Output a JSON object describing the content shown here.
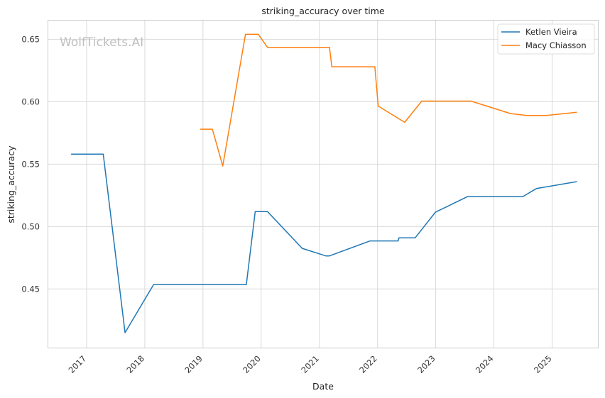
{
  "chart_data": {
    "type": "line",
    "title": "striking_accuracy over time",
    "xlabel": "Date",
    "ylabel": "striking_accuracy",
    "x_ticks": [
      "2017",
      "2018",
      "2019",
      "2020",
      "2021",
      "2022",
      "2023",
      "2024",
      "2025"
    ],
    "y_ticks": [
      "0.45",
      "0.50",
      "0.55",
      "0.60",
      "0.65"
    ],
    "xlim": [
      "2016-05-05",
      "2025-10-15"
    ],
    "ylim": [
      0.403,
      0.665
    ],
    "grid": true,
    "legend_position": "top-right",
    "watermark": "WolfTickets.AI",
    "series": [
      {
        "name": "Ketlen Vieira",
        "color": "#1f77b4",
        "points": [
          [
            "2016-09-25",
            0.558
          ],
          [
            "2017-04-15",
            0.558
          ],
          [
            "2017-08-30",
            0.415
          ],
          [
            "2018-02-25",
            0.4535
          ],
          [
            "2019-09-30",
            0.4535
          ],
          [
            "2019-11-25",
            0.512
          ],
          [
            "2020-02-10",
            0.512
          ],
          [
            "2020-09-15",
            0.4825
          ],
          [
            "2021-02-10",
            0.4765
          ],
          [
            "2021-03-05",
            0.4765
          ],
          [
            "2021-11-15",
            0.4885
          ],
          [
            "2022-05-10",
            0.4885
          ],
          [
            "2022-05-15",
            0.491
          ],
          [
            "2022-08-25",
            0.491
          ],
          [
            "2022-12-30",
            0.5115
          ],
          [
            "2023-07-20",
            0.524
          ],
          [
            "2024-07-01",
            0.524
          ],
          [
            "2024-09-25",
            0.5305
          ],
          [
            "2025-06-05",
            0.536
          ]
        ]
      },
      {
        "name": "Macy Chiasson",
        "color": "#ff7f0e",
        "points": [
          [
            "2018-12-15",
            0.578
          ],
          [
            "2019-03-01",
            0.578
          ],
          [
            "2019-05-05",
            0.5485
          ],
          [
            "2019-09-25",
            0.654
          ],
          [
            "2019-12-15",
            0.654
          ],
          [
            "2020-02-10",
            0.6435
          ],
          [
            "2021-03-05",
            0.6435
          ],
          [
            "2021-03-20",
            0.628
          ],
          [
            "2021-12-15",
            0.628
          ],
          [
            "2022-01-05",
            0.5965
          ],
          [
            "2022-06-20",
            0.5835
          ],
          [
            "2022-10-05",
            0.6005
          ],
          [
            "2023-08-10",
            0.6005
          ],
          [
            "2024-04-15",
            0.5905
          ],
          [
            "2024-07-25",
            0.589
          ],
          [
            "2024-11-25",
            0.589
          ],
          [
            "2025-06-05",
            0.5915
          ]
        ]
      }
    ]
  }
}
